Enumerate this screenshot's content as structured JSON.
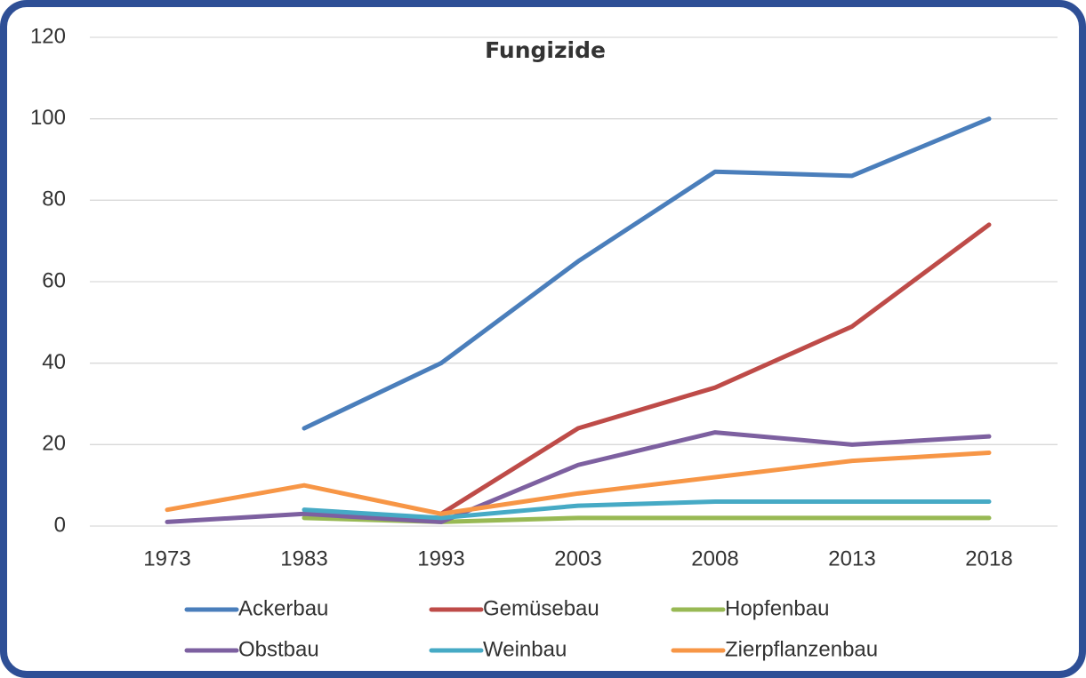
{
  "chart_data": {
    "type": "line",
    "title": "Fungizide",
    "categories": [
      "1973",
      "1983",
      "1993",
      "2003",
      "2008",
      "2013",
      "2018"
    ],
    "series": [
      {
        "name": "Ackerbau",
        "color": "#4a7ebb",
        "values": [
          null,
          24,
          40,
          65,
          87,
          86,
          100
        ]
      },
      {
        "name": "Gemüsebau",
        "color": "#be4b48",
        "values": [
          null,
          null,
          3,
          24,
          34,
          49,
          74
        ]
      },
      {
        "name": "Hopfenbau",
        "color": "#98b954",
        "values": [
          null,
          2,
          1,
          2,
          2,
          2,
          2
        ]
      },
      {
        "name": "Obstbau",
        "color": "#7d60a0",
        "values": [
          1,
          3,
          1,
          15,
          23,
          20,
          22
        ]
      },
      {
        "name": "Weinbau",
        "color": "#46aac5",
        "values": [
          null,
          4,
          2,
          5,
          6,
          6,
          6
        ]
      },
      {
        "name": "Zierpflanzenbau",
        "color": "#f79646",
        "values": [
          4,
          10,
          3,
          8,
          12,
          16,
          18
        ]
      }
    ],
    "ylim": [
      0,
      120
    ],
    "yticks": [
      0,
      20,
      40,
      60,
      80,
      100,
      120
    ],
    "grid": true,
    "legend": "bottom"
  }
}
